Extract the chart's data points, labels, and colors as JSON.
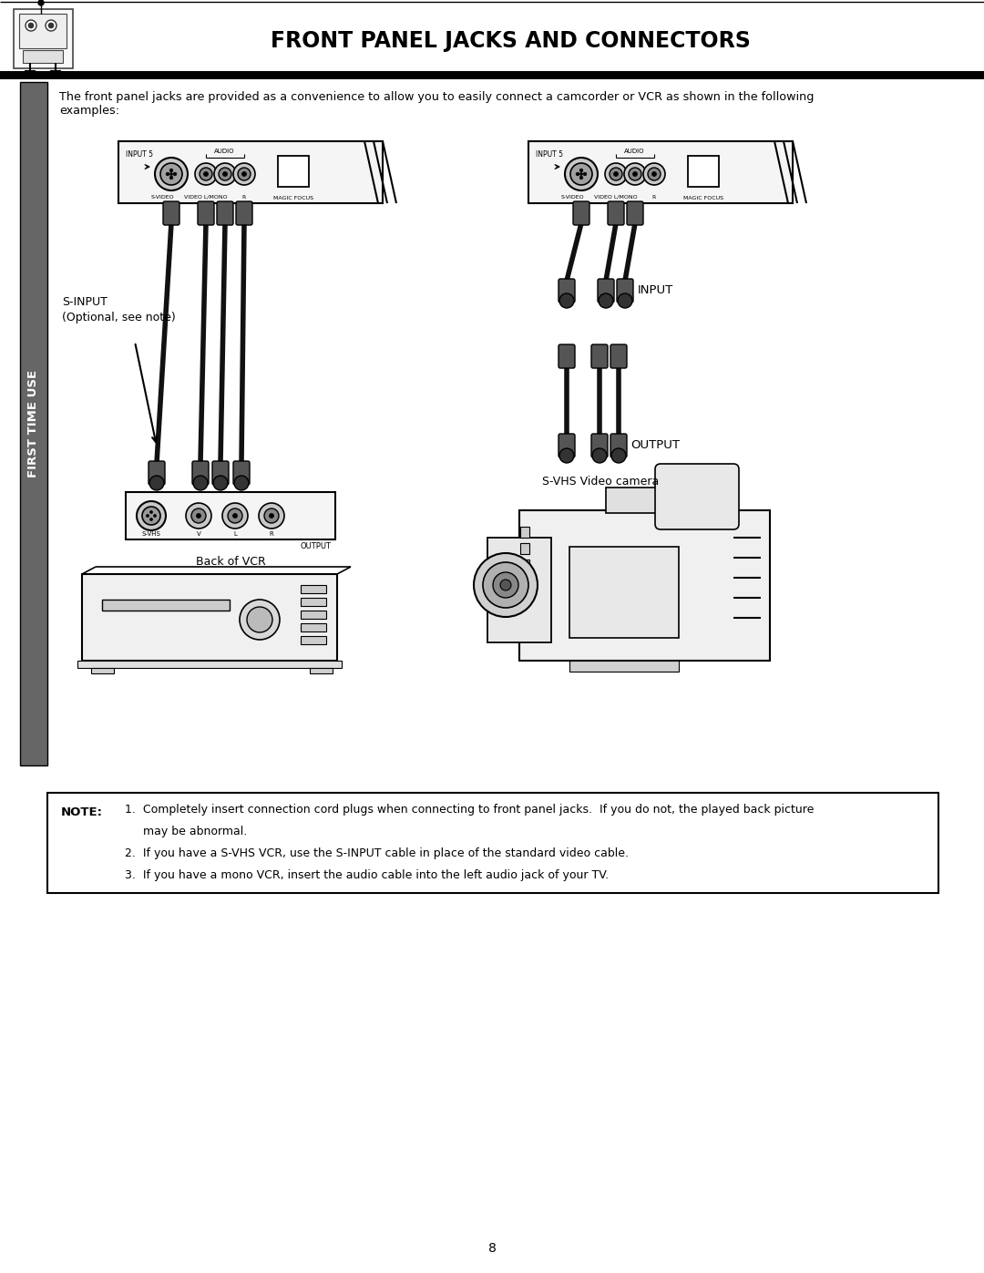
{
  "title": "FRONT PANEL JACKS AND CONNECTORS",
  "page_num": "8",
  "bg_color": "#ffffff",
  "sidebar_color": "#666666",
  "sidebar_text": "FIRST TIME USE",
  "intro_text": "The front panel jacks are provided as a convenience to allow you to easily connect a camcorder or VCR as shown in the following\nexamples:",
  "label_sinput": "S-INPUT\n(Optional, see note)",
  "label_back_vcr": "Back of VCR",
  "label_svhs_camera": "S-VHS Video camera",
  "label_input": "INPUT",
  "label_output": "OUTPUT",
  "note_label": "NOTE:",
  "note_lines": [
    "1.  Completely insert connection cord plugs when connecting to front panel jacks.  If you do not, the played back picture",
    "     may be abnormal.",
    "2.  If you have a S-VHS VCR, use the S-INPUT cable in place of the standard video cable.",
    "3.  If you have a mono VCR, insert the audio cable into the left audio jack of your TV."
  ]
}
